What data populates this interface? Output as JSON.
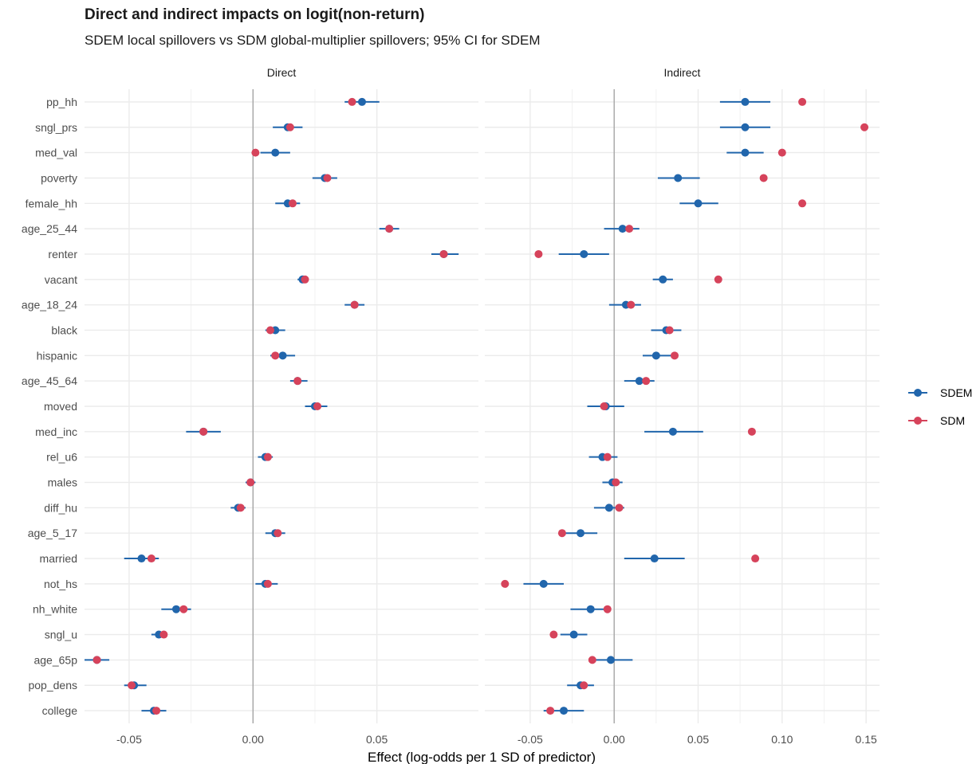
{
  "chart_data": {
    "type": "scatter",
    "title": "Direct and indirect impacts on logit(non-return)",
    "subtitle": "SDEM local spillovers vs SDM global-multiplier spillovers; 95% CI for SDEM",
    "xlabel": "Effect (log-odds per 1 SD of predictor)",
    "categories": [
      "pp_hh",
      "sngl_prs",
      "med_val",
      "poverty",
      "female_hh",
      "age_25_44",
      "renter",
      "vacant",
      "age_18_24",
      "black",
      "hispanic",
      "age_45_64",
      "moved",
      "med_inc",
      "rel_u6",
      "males",
      "diff_hu",
      "age_5_17",
      "married",
      "not_hs",
      "nh_white",
      "sngl_u",
      "age_65p",
      "pop_dens",
      "college"
    ],
    "legend": [
      "SDEM",
      "SDM"
    ],
    "legend_position": "right",
    "colors": {
      "SDEM": "#2166ac",
      "SDM": "#d6435b"
    },
    "grid": true,
    "panels": [
      {
        "name": "Direct",
        "xlim": [
          -0.068,
          0.091
        ],
        "ticks": [
          -0.05,
          0.0,
          0.05
        ],
        "tick_labels": [
          "-0.05",
          "0.00",
          "0.05"
        ],
        "sdem": [
          0.044,
          0.014,
          0.009,
          0.029,
          0.014,
          0.055,
          0.077,
          0.02,
          0.041,
          0.009,
          0.012,
          0.018,
          0.025,
          -0.02,
          0.005,
          -0.001,
          -0.006,
          0.009,
          -0.045,
          0.005,
          -0.031,
          -0.038,
          -0.063,
          -0.048,
          -0.04
        ],
        "sdem_lo": [
          0.037,
          0.008,
          0.003,
          0.024,
          0.009,
          0.051,
          0.072,
          0.018,
          0.037,
          0.005,
          0.007,
          0.015,
          0.021,
          -0.027,
          0.002,
          -0.003,
          -0.009,
          0.005,
          -0.052,
          0.001,
          -0.037,
          -0.041,
          -0.068,
          -0.052,
          -0.045
        ],
        "sdem_hi": [
          0.051,
          0.02,
          0.015,
          0.034,
          0.019,
          0.059,
          0.083,
          0.022,
          0.045,
          0.013,
          0.017,
          0.022,
          0.03,
          -0.013,
          0.008,
          0.001,
          -0.003,
          0.013,
          -0.038,
          0.01,
          -0.025,
          -0.035,
          -0.058,
          -0.043,
          -0.035
        ],
        "sdm": [
          0.04,
          0.015,
          0.001,
          0.03,
          0.016,
          0.055,
          0.077,
          0.021,
          0.041,
          0.007,
          0.009,
          0.018,
          0.026,
          -0.02,
          0.006,
          -0.001,
          -0.005,
          0.01,
          -0.041,
          0.006,
          -0.028,
          -0.036,
          -0.063,
          -0.049,
          -0.039
        ]
      },
      {
        "name": "Indirect",
        "xlim": [
          -0.077,
          0.158
        ],
        "ticks": [
          -0.05,
          0.0,
          0.05,
          0.1,
          0.15
        ],
        "tick_labels": [
          "-0.05",
          "0.00",
          "0.05",
          "0.10",
          "0.15"
        ],
        "sdem": [
          0.078,
          0.078,
          0.078,
          0.038,
          0.05,
          0.005,
          -0.018,
          0.029,
          0.007,
          0.031,
          0.025,
          0.015,
          -0.005,
          0.035,
          -0.007,
          -0.001,
          -0.003,
          -0.02,
          0.024,
          -0.042,
          -0.014,
          -0.024,
          -0.002,
          -0.02,
          -0.03
        ],
        "sdem_lo": [
          0.063,
          0.063,
          0.067,
          0.026,
          0.039,
          -0.006,
          -0.033,
          0.023,
          -0.003,
          0.022,
          0.017,
          0.006,
          -0.016,
          0.018,
          -0.015,
          -0.007,
          -0.012,
          -0.03,
          0.006,
          -0.054,
          -0.026,
          -0.032,
          -0.014,
          -0.028,
          -0.042
        ],
        "sdem_hi": [
          0.093,
          0.093,
          0.089,
          0.051,
          0.062,
          0.015,
          -0.003,
          0.035,
          0.016,
          0.04,
          0.034,
          0.024,
          0.006,
          0.053,
          0.002,
          0.005,
          0.006,
          -0.01,
          0.042,
          -0.03,
          -0.002,
          -0.016,
          0.011,
          -0.012,
          -0.018
        ],
        "sdm": [
          0.112,
          0.149,
          0.1,
          0.089,
          0.112,
          0.009,
          -0.045,
          0.062,
          0.01,
          0.033,
          0.036,
          0.019,
          -0.006,
          0.082,
          -0.004,
          0.001,
          0.003,
          -0.031,
          0.084,
          -0.065,
          -0.004,
          -0.036,
          -0.013,
          -0.018,
          -0.038
        ]
      }
    ]
  }
}
